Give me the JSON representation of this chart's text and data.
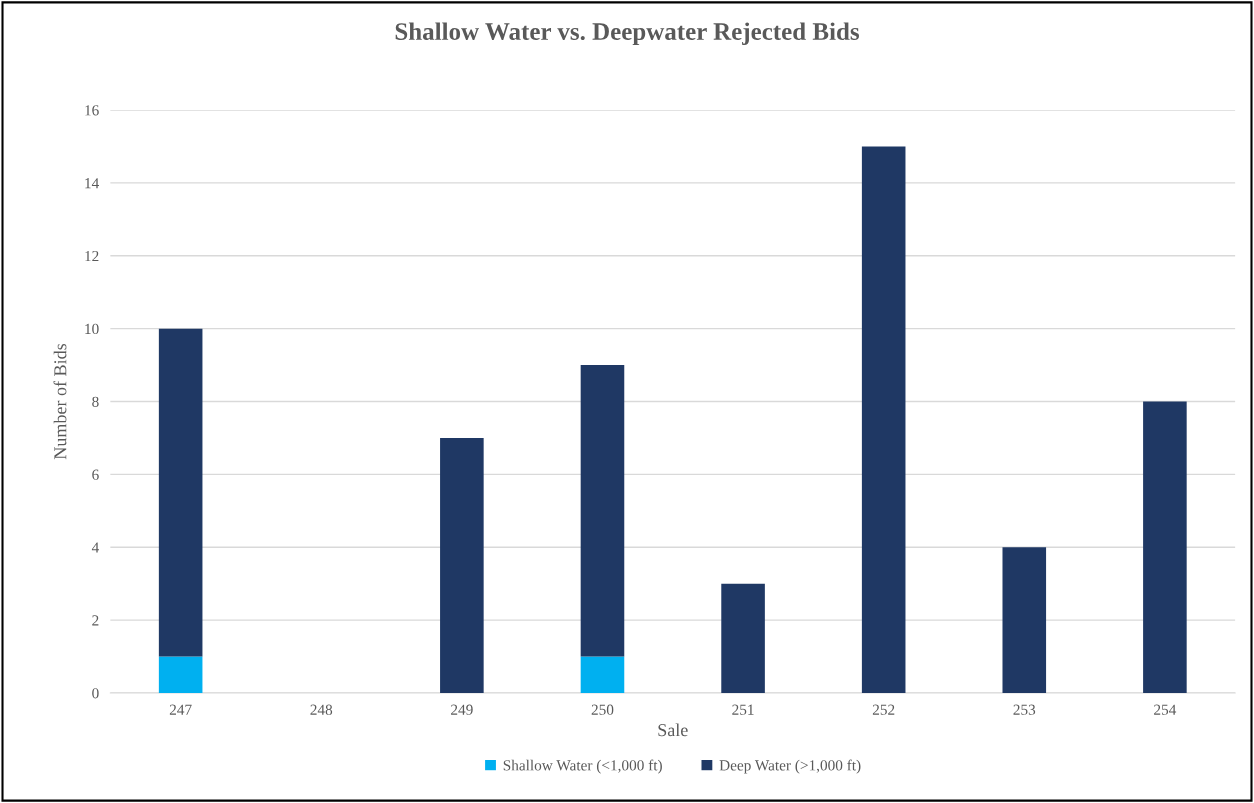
{
  "chart_data": {
    "type": "bar",
    "title": "Shallow Water vs. Deepwater Rejected Bids",
    "xlabel": "Sale",
    "ylabel": "Number of Bids",
    "categories": [
      "247",
      "248",
      "249",
      "250",
      "251",
      "252",
      "253",
      "254"
    ],
    "series": [
      {
        "name": "Shallow Water (<1,000 ft)",
        "color": "#00b0f0",
        "values": [
          1,
          0,
          0,
          1,
          0,
          0,
          0,
          0
        ]
      },
      {
        "name": "Deep Water (>1,000 ft)",
        "color": "#1f3864",
        "values": [
          9,
          0,
          7,
          8,
          3,
          15,
          4,
          8
        ]
      }
    ],
    "stacked": true,
    "ylim": [
      0,
      16
    ],
    "yticks": [
      0,
      2,
      4,
      6,
      8,
      10,
      12,
      14,
      16
    ],
    "grid": "y",
    "legend": "bottom"
  }
}
